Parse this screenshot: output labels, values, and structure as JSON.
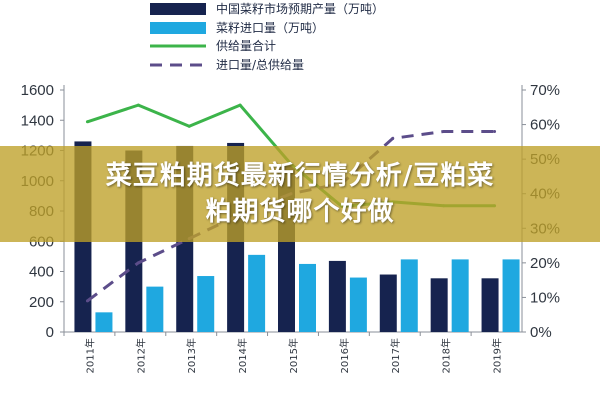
{
  "banner": {
    "line1": "菜豆粕期货最新行情分析/豆粕菜",
    "line2": "粕期货哪个好做"
  },
  "colors": {
    "production_bar": "#16234f",
    "import_bar": "#1fa8e0",
    "supply_line": "#3cb44a",
    "ratio_line": "#5c4d8a",
    "axis": "#8a8f98"
  },
  "chart_data": {
    "type": "bar",
    "categories": [
      "2011年",
      "2012年",
      "2013年",
      "2014年",
      "2015年",
      "2016年",
      "2017年",
      "2018年",
      "2019年"
    ],
    "series": [
      {
        "name": "中国菜籽市场预期产量（万吨）",
        "type": "bar",
        "axis": "left",
        "values": [
          1260,
          1200,
          1230,
          1250,
          1100,
          470,
          380,
          355,
          355
        ]
      },
      {
        "name": "菜籽进口量（万吨）",
        "type": "bar",
        "axis": "left",
        "values": [
          130,
          300,
          370,
          510,
          450,
          360,
          480,
          480,
          480
        ]
      },
      {
        "name": "供给量合计",
        "type": "line",
        "axis": "left",
        "values": [
          1390,
          1500,
          1360,
          1500,
          1110,
          830,
          860,
          835,
          835
        ]
      },
      {
        "name": "进口量/总供给量",
        "type": "line",
        "axis": "right",
        "style": "dashed",
        "values": [
          9,
          20,
          27,
          34,
          40,
          43,
          56,
          58,
          58
        ]
      }
    ],
    "ylim_left": [
      0,
      1600
    ],
    "yticks_left": [
      "0",
      "200",
      "400",
      "600",
      "800",
      "1000",
      "1200",
      "1400",
      "1600"
    ],
    "ylim_right": [
      0,
      70
    ],
    "yticks_right": [
      "0%",
      "10%",
      "20%",
      "30%",
      "40%",
      "50%",
      "60%",
      "70%"
    ],
    "legend_position": "top",
    "grid": false
  }
}
